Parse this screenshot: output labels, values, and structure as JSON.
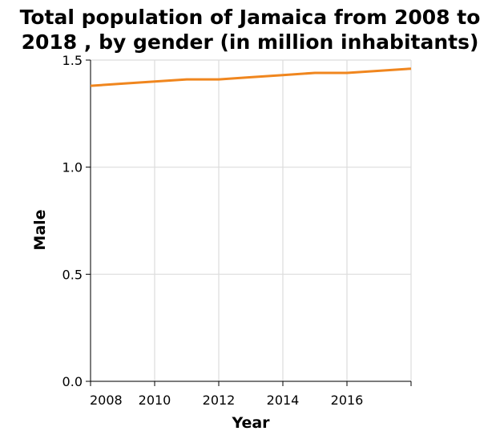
{
  "chart_data": {
    "type": "line",
    "title_lines": [
      "Total population of Jamaica from 2008 to",
      "2018 , by gender (in million inhabitants)"
    ],
    "xlabel": "Year",
    "ylabel": "Male",
    "xlim": [
      2008,
      2018
    ],
    "ylim": [
      0,
      1.5
    ],
    "x_ticks": [
      2008,
      2010,
      2012,
      2014,
      2016
    ],
    "x_tick_labels": [
      "2008",
      "2010",
      "2012",
      "2014",
      "2016"
    ],
    "y_ticks": [
      0,
      0.5,
      1.0,
      1.5
    ],
    "y_tick_labels": [
      "0.0",
      "0.5",
      "1.0",
      "1.5"
    ],
    "grid": true,
    "series": [
      {
        "color": "#f0861e",
        "x": [
          2008,
          2009,
          2010,
          2011,
          2012,
          2013,
          2014,
          2015,
          2016,
          2017,
          2018
        ],
        "values": [
          1.38,
          1.39,
          1.4,
          1.41,
          1.41,
          1.42,
          1.43,
          1.44,
          1.44,
          1.45,
          1.46
        ]
      }
    ]
  }
}
